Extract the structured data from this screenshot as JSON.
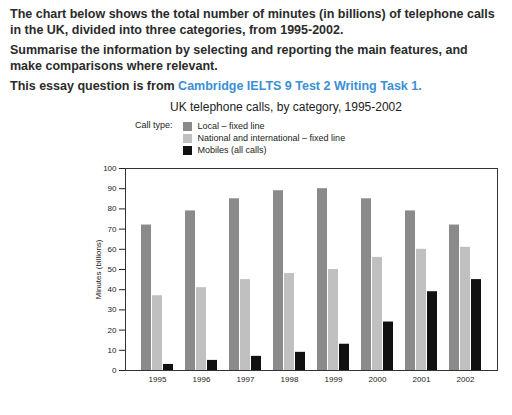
{
  "header": {
    "paragraphs": [
      "The chart below shows the total number of minutes (in billions) of telephone calls in the UK, divided into three categories, from 1995-2002.",
      "Summarise the information by selecting and reporting the main features, and make comparisons where relevant."
    ],
    "source": {
      "text": "This essay question is from ",
      "link": "Cambridge IELTS 9 Test 2 Writing Task 1."
    }
  },
  "chart_data": {
    "type": "bar",
    "title": "UK telephone calls, by category, 1995-2002",
    "legend_title": "Call type:",
    "legend": "top",
    "categories": [
      "1995",
      "1996",
      "1997",
      "1998",
      "1999",
      "2000",
      "2001",
      "2002"
    ],
    "series": [
      {
        "name": "Local – fixed line",
        "color": "#8a8a8a",
        "values": [
          72,
          79,
          85,
          89,
          90,
          85,
          79,
          72
        ]
      },
      {
        "name": "National and international – fixed line",
        "color": "#c0c0c0",
        "values": [
          37,
          41,
          45,
          48,
          50,
          56,
          60,
          61
        ]
      },
      {
        "name": "Mobiles (all calls)",
        "color": "#111111",
        "values": [
          3,
          5,
          7,
          9,
          13,
          24,
          39,
          45
        ]
      }
    ],
    "y_label": "Minutes (billions)",
    "ylim": [
      0,
      100
    ],
    "yticks": [
      0,
      10,
      20,
      30,
      40,
      50,
      60,
      70,
      80,
      90,
      100
    ],
    "grid": false
  }
}
